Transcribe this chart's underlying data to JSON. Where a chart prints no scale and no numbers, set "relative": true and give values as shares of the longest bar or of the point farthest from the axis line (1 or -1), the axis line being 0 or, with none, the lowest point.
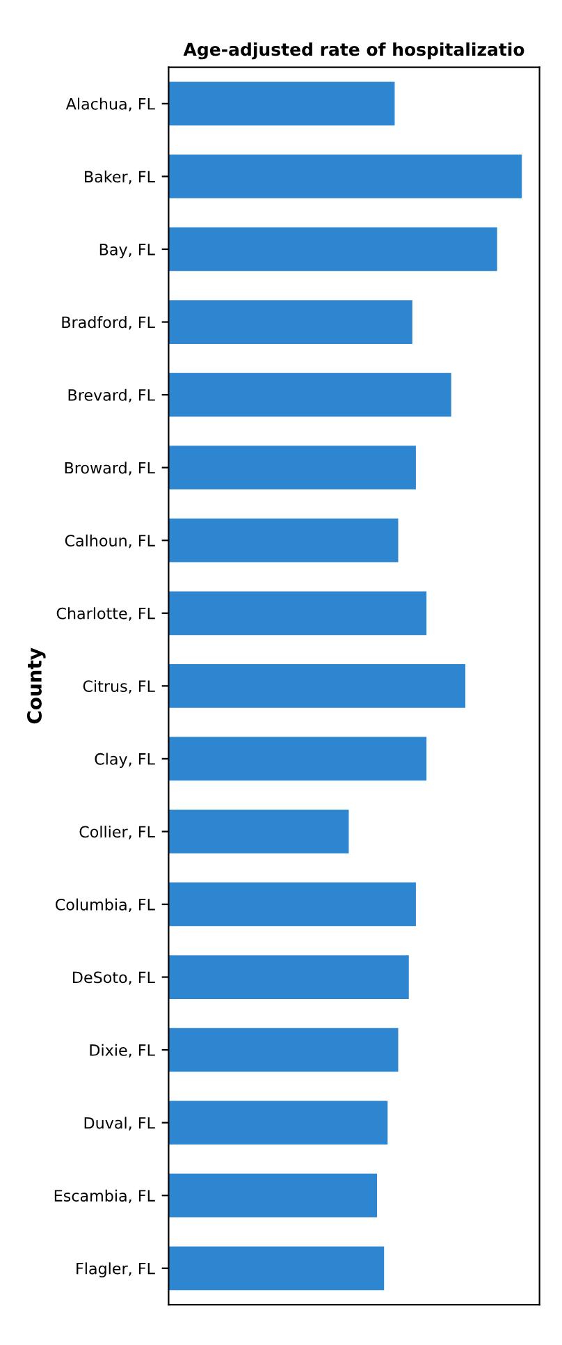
{
  "chart_data": {
    "type": "bar",
    "orientation": "horizontal",
    "relative": true,
    "title": "Age-adjusted rate of hospitalizatio",
    "ylabel": "County",
    "categories": [
      "Alachua, FL",
      "Baker, FL",
      "Bay, FL",
      "Bradford, FL",
      "Brevard, FL",
      "Broward, FL",
      "Calhoun, FL",
      "Charlotte, FL",
      "Citrus, FL",
      "Clay, FL",
      "Collier, FL",
      "Columbia, FL",
      "DeSoto, FL",
      "Dixie, FL",
      "Duval, FL",
      "Escambia, FL",
      "Flagler, FL"
    ],
    "values": [
      0.64,
      1,
      0.93,
      0.69,
      0.8,
      0.7,
      0.65,
      0.73,
      0.84,
      0.73,
      0.51,
      0.7,
      0.68,
      0.65,
      0.62,
      0.59,
      0.61
    ],
    "color": "#2e86d1"
  }
}
